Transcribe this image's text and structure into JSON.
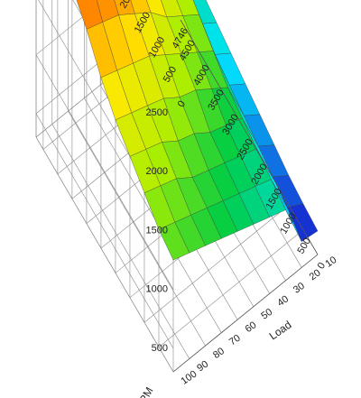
{
  "chart_data": {
    "type": "surface",
    "x_label": "Load",
    "y_label": "RPM",
    "x_ticks": [
      10,
      20,
      30,
      40,
      50,
      60,
      70,
      80,
      90,
      100
    ],
    "y_ticks": [
      0,
      500,
      1000,
      1500,
      2000,
      2500,
      3000,
      3500,
      4000,
      4500,
      4746
    ],
    "z_ticks": [
      500,
      1000,
      1500,
      2000,
      2500
    ],
    "xlim": [
      10,
      100
    ],
    "ylim": [
      0,
      4746
    ],
    "zlim": [
      300,
      2600
    ],
    "load": [
      10,
      20,
      30,
      40,
      50,
      60,
      70,
      80,
      90,
      100
    ],
    "rpm": [
      0,
      500,
      1000,
      1500,
      2000,
      2500,
      3000,
      3500,
      4000,
      4500,
      4746
    ],
    "z": [
      [
        500,
        520,
        900,
        950,
        1000,
        1050,
        1100,
        1150,
        1200,
        1250
      ],
      [
        520,
        600,
        950,
        1000,
        1050,
        1100,
        1150,
        1200,
        1250,
        1300
      ],
      [
        550,
        650,
        1000,
        1050,
        1100,
        1150,
        1200,
        1300,
        1350,
        1400
      ],
      [
        600,
        700,
        1050,
        1100,
        1150,
        1250,
        1300,
        1400,
        1450,
        1500
      ],
      [
        650,
        750,
        1100,
        1200,
        1300,
        1350,
        1450,
        1500,
        1550,
        1600
      ],
      [
        700,
        800,
        1200,
        1300,
        1400,
        1500,
        1600,
        1650,
        1700,
        1750
      ],
      [
        750,
        850,
        1300,
        1400,
        1500,
        1650,
        1750,
        1850,
        1900,
        1950
      ],
      [
        800,
        900,
        1400,
        1500,
        1650,
        1800,
        1950,
        2050,
        2150,
        2100
      ],
      [
        850,
        950,
        1450,
        1600,
        1750,
        1900,
        2100,
        2250,
        2400,
        2300
      ],
      [
        880,
        980,
        1500,
        1650,
        1800,
        2000,
        2200,
        2400,
        2550,
        2450
      ],
      [
        900,
        1000,
        1500,
        1650,
        1800,
        2000,
        2200,
        2400,
        2500,
        2400
      ]
    ],
    "colorscale": [
      "#1a1acc",
      "#00e5ff",
      "#00cc44",
      "#aaee00",
      "#ffe800",
      "#ff9900",
      "#ff4000",
      "#e60000"
    ]
  }
}
